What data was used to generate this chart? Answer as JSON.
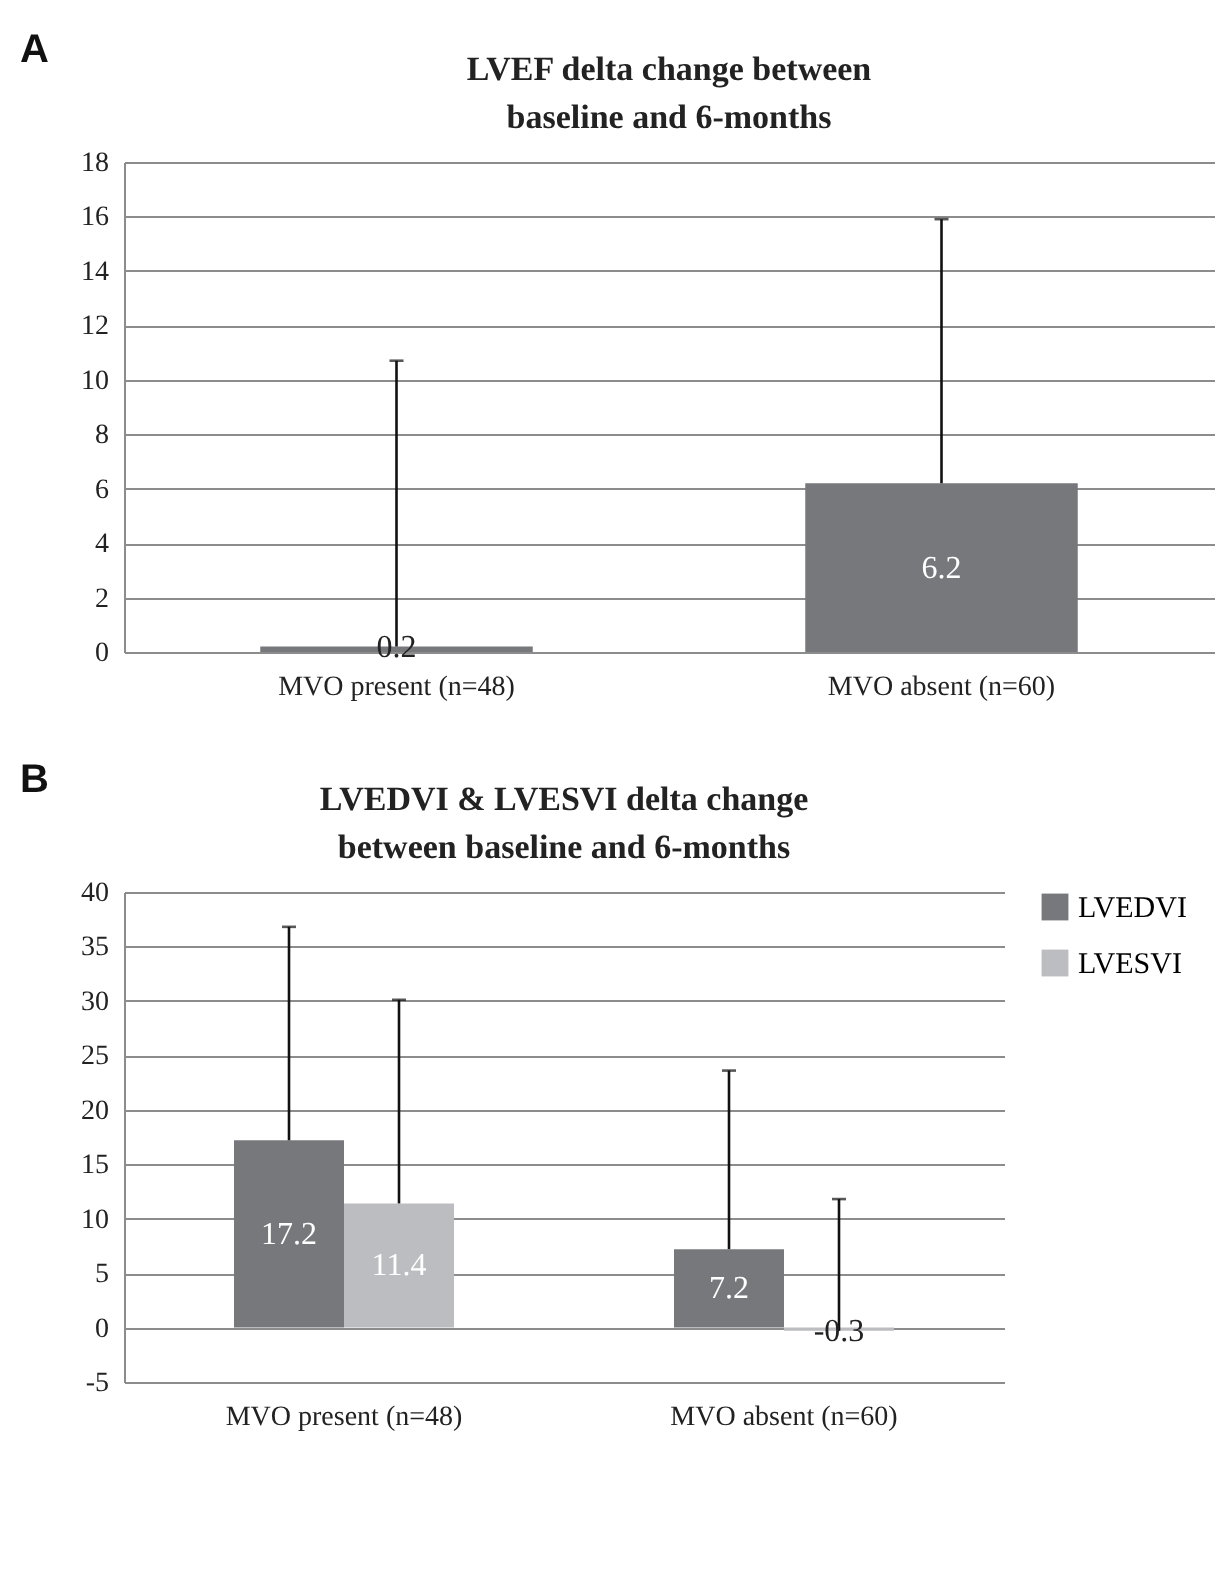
{
  "chart_data": [
    {
      "type": "bar",
      "title": "LVEF delta change between\nbaseline and 6-months",
      "annotations": [
        "A"
      ],
      "categories": [
        "MVO present (n=48)",
        "MVO absent (n=60)"
      ],
      "series": [
        {
          "color": "#77787b",
          "values": [
            0.2,
            6.2
          ],
          "errors": [
            [
              0.2,
              10.7
            ],
            [
              6.2,
              15.9
            ]
          ]
        }
      ],
      "ylim": [
        0,
        18
      ],
      "yticks": [
        0,
        2,
        4,
        6,
        8,
        10,
        12,
        14,
        16,
        18
      ],
      "grid": "y",
      "data_labels": true
    },
    {
      "type": "bar",
      "title": "LVEDVI & LVESVI delta change\nbetween baseline and 6-months",
      "annotations": [
        "B"
      ],
      "categories": [
        "MVO present (n=48)",
        "MVO absent (n=60)"
      ],
      "series": [
        {
          "name": "LVEDVI",
          "color": "#77787b",
          "values": [
            17.2,
            7.2
          ],
          "errors": [
            [
              17.2,
              36.8
            ],
            [
              7.2,
              23.6
            ]
          ]
        },
        {
          "name": "LVESVI",
          "color": "#bcbdc0",
          "values": [
            11.4,
            -0.3
          ],
          "errors": [
            [
              11.4,
              30.1
            ],
            [
              -0.3,
              11.8
            ]
          ]
        }
      ],
      "ylim": [
        -5,
        40
      ],
      "yticks": [
        -5,
        0,
        5,
        10,
        15,
        20,
        25,
        30,
        35,
        40
      ],
      "grid": "y",
      "legend": "right",
      "data_labels": true
    }
  ]
}
